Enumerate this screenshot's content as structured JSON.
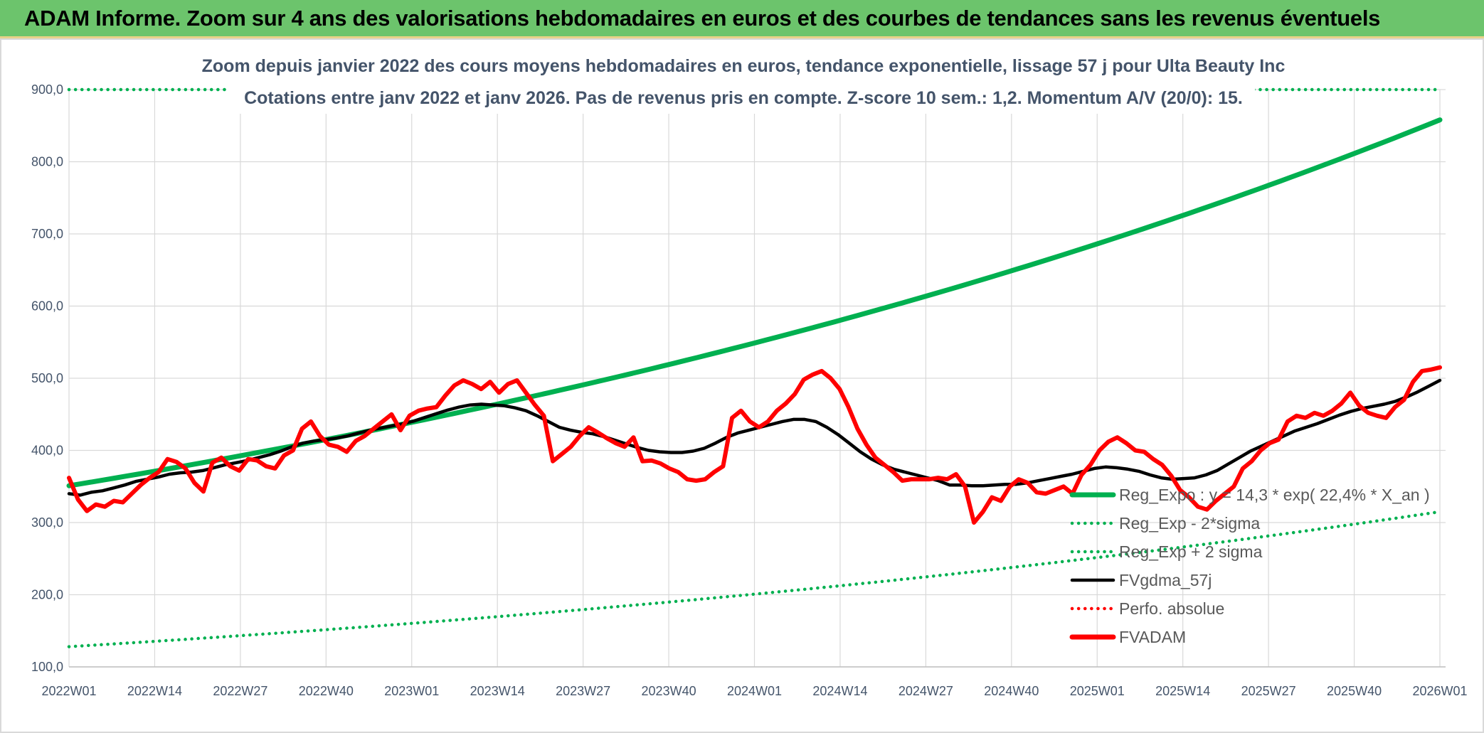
{
  "header": {
    "title": "ADAM Informe. Zoom sur 4 ans des valorisations hebdomadaires en euros et des courbes de tendances sans les revenus éventuels"
  },
  "chart_data": {
    "type": "line",
    "title_line1": "Zoom depuis janvier 2022 des cours moyens hebdomadaires en euros, tendance exponentielle, lissage 57 j pour Ulta Beauty Inc",
    "title_line2": "Cotations entre janv 2022 et janv 2026. Pas de revenus pris en compte. Z-score 10 sem.: 1,2. Momentum A/V (20/0): 15.",
    "ylim": [
      100,
      900
    ],
    "y_ticks": [
      "100,0",
      "200,0",
      "300,0",
      "400,0",
      "500,0",
      "600,0",
      "700,0",
      "800,0",
      "900,0"
    ],
    "x_ticks": [
      "2022W01",
      "2022W14",
      "2022W27",
      "2022W40",
      "2023W01",
      "2023W14",
      "2023W27",
      "2023W40",
      "2024W01",
      "2024W14",
      "2024W27",
      "2024W40",
      "2025W01",
      "2025W14",
      "2025W27",
      "2025W40",
      "2026W01"
    ],
    "grid": true,
    "legend_position": "lower-right",
    "series": [
      {
        "name": "Reg_Expo : y = 14,3 * exp( 22,4% *  X_an )",
        "color": "#00b050",
        "style": "solid",
        "kind": "exp",
        "start": 351,
        "end": 858
      },
      {
        "name": "Reg_Exp - 2*sigma",
        "color": "#00b050",
        "style": "dotted",
        "kind": "exp",
        "start": 128,
        "end": 315
      },
      {
        "name": "Reg_Exp + 2 sigma",
        "color": "#00b050",
        "style": "dotted",
        "kind": "exp",
        "start": 900,
        "end": 900
      },
      {
        "name": "FVgdma_57j",
        "color": "#000000",
        "style": "solid",
        "values": [
          340,
          338,
          342,
          344,
          348,
          352,
          357,
          360,
          363,
          367,
          369,
          370,
          372,
          376,
          380,
          383,
          386,
          390,
          394,
          399,
          405,
          410,
          413,
          415,
          417,
          420,
          424,
          428,
          431,
          434,
          437,
          441,
          446,
          451,
          456,
          460,
          463,
          464,
          463,
          462,
          459,
          455,
          448,
          440,
          432,
          428,
          425,
          423,
          419,
          414,
          409,
          404,
          400,
          398,
          397,
          397,
          399,
          403,
          410,
          418,
          424,
          428,
          432,
          436,
          440,
          443,
          443,
          440,
          432,
          422,
          410,
          398,
          388,
          380,
          374,
          370,
          366,
          362,
          358,
          352,
          352,
          351,
          351,
          352,
          353,
          353,
          355,
          358,
          361,
          364,
          367,
          371,
          375,
          377,
          376,
          374,
          371,
          366,
          362,
          360,
          361,
          362,
          366,
          372,
          381,
          390,
          399,
          406,
          413,
          420,
          427,
          432,
          437,
          443,
          449,
          454,
          458,
          461,
          464,
          468,
          474,
          481,
          489,
          497
        ]
      },
      {
        "name": "Perfo. absolue",
        "color": "#ff0000",
        "style": "dotted",
        "values": []
      },
      {
        "name": "FVADAM",
        "color": "#ff0000",
        "style": "solid",
        "values": [
          362,
          332,
          316,
          325,
          322,
          330,
          328,
          340,
          352,
          362,
          370,
          388,
          384,
          375,
          355,
          343,
          383,
          390,
          378,
          372,
          388,
          386,
          378,
          375,
          393,
          400,
          430,
          440,
          420,
          408,
          405,
          398,
          413,
          420,
          430,
          440,
          450,
          428,
          448,
          455,
          458,
          460,
          476,
          490,
          497,
          492,
          485,
          495,
          480,
          492,
          497,
          480,
          463,
          448,
          385,
          395,
          405,
          420,
          432,
          425,
          417,
          410,
          405,
          418,
          385,
          386,
          382,
          375,
          370,
          360,
          358,
          360,
          370,
          378,
          445,
          455,
          440,
          432,
          440,
          455,
          465,
          478,
          498,
          505,
          510,
          500,
          485,
          460,
          430,
          408,
          390,
          380,
          370,
          358,
          360,
          360,
          360,
          362,
          360,
          367,
          350,
          300,
          315,
          335,
          330,
          350,
          360,
          355,
          342,
          340,
          345,
          350,
          340,
          366,
          380,
          400,
          412,
          418,
          410,
          400,
          398,
          388,
          380,
          365,
          345,
          335,
          322,
          318,
          330,
          340,
          350,
          375,
          385,
          400,
          410,
          415,
          440,
          448,
          445,
          452,
          448,
          455,
          465,
          480,
          462,
          452,
          448,
          445,
          460,
          470,
          495,
          510,
          512,
          515
        ]
      }
    ]
  }
}
